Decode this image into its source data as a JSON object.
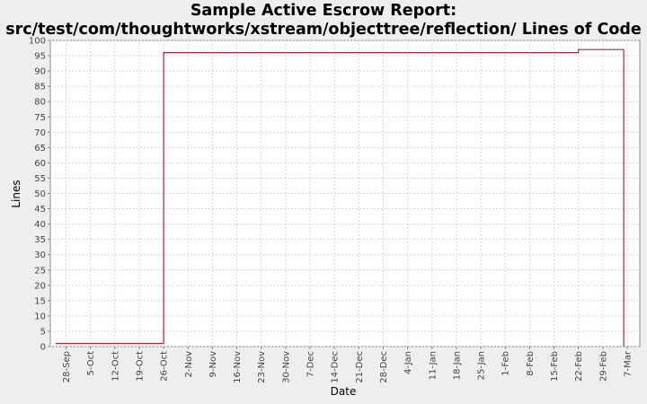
{
  "chart_data": {
    "type": "line",
    "title": "Sample Active Escrow Report:",
    "subtitle": "src/test/com/thoughtworks/xstream/objecttree/reflection/ Lines of Code",
    "xlabel": "Date",
    "ylabel": "Lines",
    "ylim": [
      0,
      100
    ],
    "y_ticks": [
      0,
      5,
      10,
      15,
      20,
      25,
      30,
      35,
      40,
      45,
      50,
      55,
      60,
      65,
      70,
      75,
      80,
      85,
      90,
      95,
      100
    ],
    "x_tick_labels": [
      "28-Sep",
      "5-Oct",
      "12-Oct",
      "19-Oct",
      "26-Oct",
      "2-Nov",
      "9-Nov",
      "16-Nov",
      "23-Nov",
      "30-Nov",
      "7-Dec",
      "14-Dec",
      "21-Dec",
      "28-Dec",
      "4-Jan",
      "11-Jan",
      "18-Jan",
      "25-Jan",
      "1-Feb",
      "8-Feb",
      "15-Feb",
      "22-Feb",
      "29-Feb",
      "7-Mar"
    ],
    "grid": true,
    "step": true,
    "series": [
      {
        "color": "#b0263a",
        "x": [
          "25-Sep",
          "26-Oct",
          "22-Feb",
          "6-Mar"
        ],
        "y": [
          1,
          96,
          97,
          0
        ]
      }
    ]
  }
}
